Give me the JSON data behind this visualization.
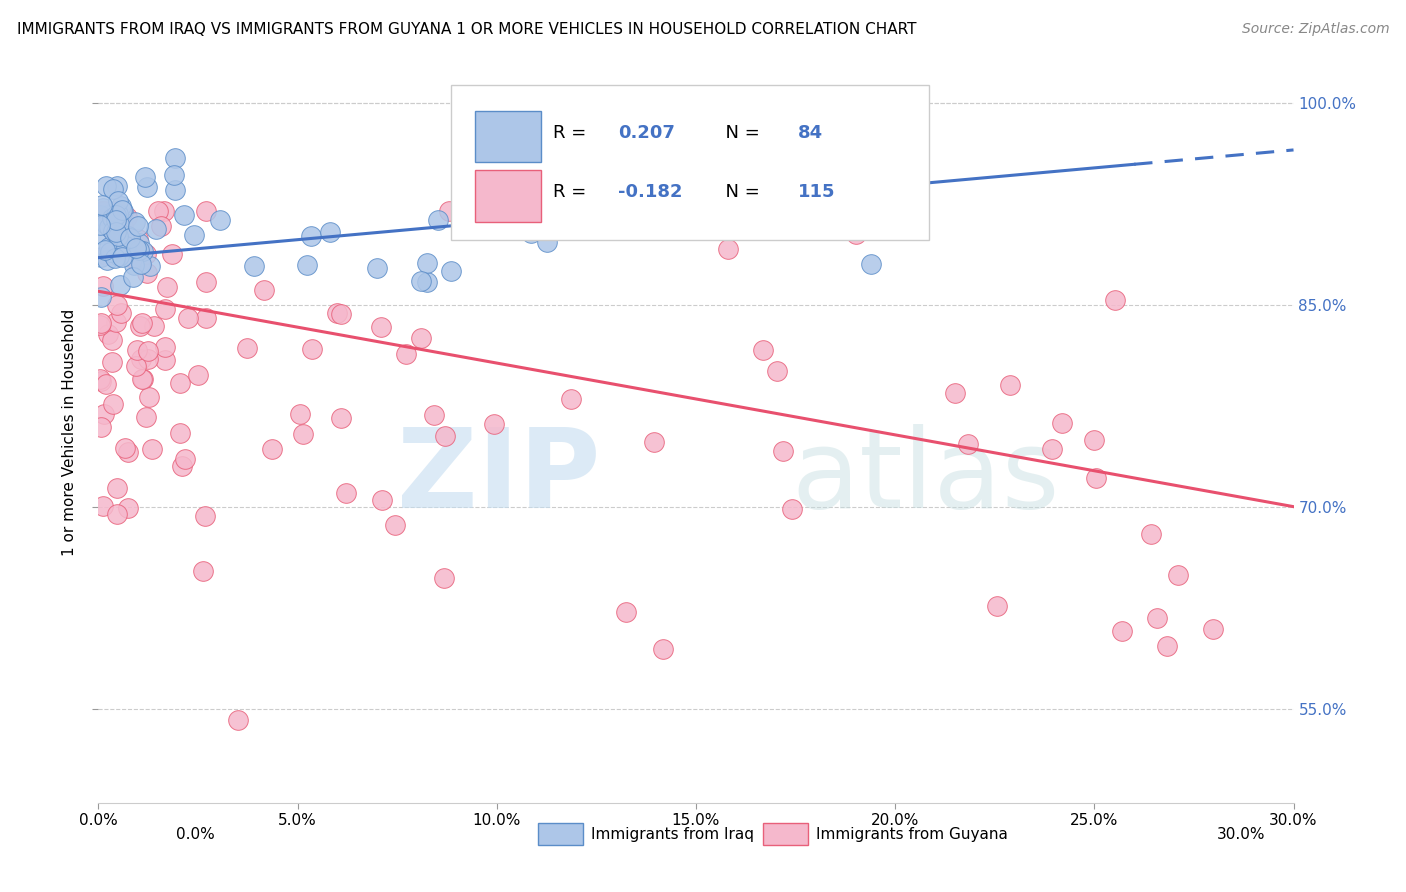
{
  "title": "IMMIGRANTS FROM IRAQ VS IMMIGRANTS FROM GUYANA 1 OR MORE VEHICLES IN HOUSEHOLD CORRELATION CHART",
  "source": "Source: ZipAtlas.com",
  "ylabel_label": "1 or more Vehicles in Household",
  "xlim": [
    0.0,
    30.0
  ],
  "ylim": [
    48.0,
    103.0
  ],
  "ytick_vals": [
    55.0,
    70.0,
    85.0,
    100.0
  ],
  "xtick_vals": [
    0,
    5,
    10,
    15,
    20,
    25,
    30
  ],
  "legend_label1": "Immigrants from Iraq",
  "legend_label2": "Immigrants from Guyana",
  "R1": 0.207,
  "N1": 84,
  "R2": -0.182,
  "N2": 115,
  "color_iraq_fill": "#adc6e8",
  "color_iraq_edge": "#5b8dc8",
  "color_guyana_fill": "#f5b8cc",
  "color_guyana_edge": "#e8607a",
  "color_line_iraq": "#4472c4",
  "color_line_guyana": "#e8506e",
  "color_ytick": "#4472c4",
  "background_color": "#ffffff",
  "watermark_zip": "ZIP",
  "watermark_atlas": "atlas",
  "iraq_line_x0": 0.0,
  "iraq_line_y0": 88.5,
  "iraq_line_x1": 30.0,
  "iraq_line_y1": 96.5,
  "guyana_line_x0": 0.0,
  "guyana_line_y0": 86.0,
  "guyana_line_x1": 30.0,
  "guyana_line_y1": 70.0,
  "iraq_dash_start": 26.0,
  "title_fontsize": 11,
  "source_fontsize": 10,
  "tick_fontsize": 11,
  "ylabel_fontsize": 11
}
